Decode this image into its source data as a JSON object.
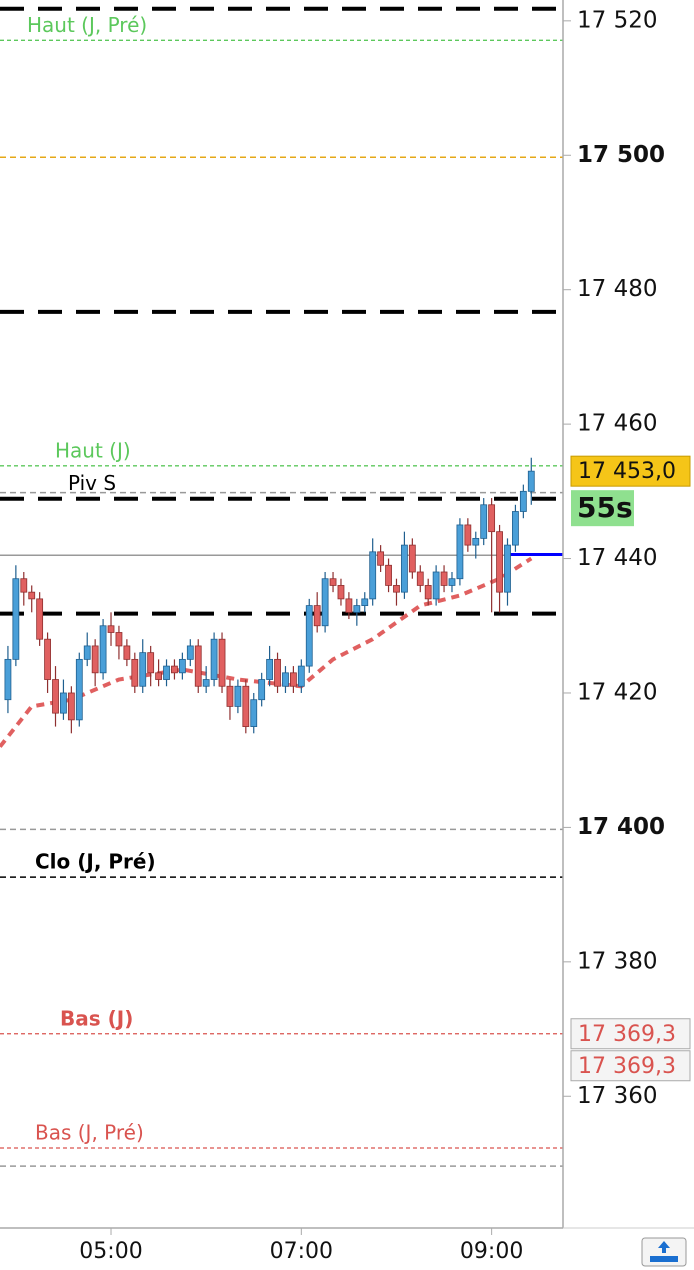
{
  "chart_data": {
    "type": "candlestick",
    "x": [
      "03:55",
      "04:00",
      "04:05",
      "04:10",
      "04:15",
      "04:20",
      "04:25",
      "04:30",
      "04:35",
      "04:40",
      "04:45",
      "04:50",
      "04:55",
      "05:00",
      "05:05",
      "05:10",
      "05:15",
      "05:20",
      "05:25",
      "05:30",
      "05:35",
      "05:40",
      "05:45",
      "05:50",
      "05:55",
      "06:00",
      "06:05",
      "06:10",
      "06:15",
      "06:20",
      "06:25",
      "06:30",
      "06:35",
      "06:40",
      "06:45",
      "06:50",
      "06:55",
      "07:00",
      "07:05",
      "07:10",
      "07:15",
      "07:20",
      "07:25",
      "07:30",
      "07:35",
      "07:40",
      "07:45",
      "07:50",
      "07:55",
      "08:00",
      "08:05",
      "08:10",
      "08:15",
      "08:20",
      "08:25",
      "08:30",
      "08:35",
      "08:40",
      "08:45",
      "08:50",
      "08:55",
      "09:00",
      "09:05",
      "09:10",
      "09:15",
      "09:20",
      "09:25"
    ],
    "open": [
      17419,
      17425,
      17437,
      17435,
      17434,
      17428,
      17422,
      17417,
      17420,
      17416,
      17425,
      17427,
      17423,
      17430,
      17429,
      17427,
      17425,
      17421,
      17426,
      17423,
      17422,
      17424,
      17423,
      17425,
      17427,
      17421,
      17422,
      17428,
      17421,
      17418,
      17421,
      17415,
      17419,
      17422,
      17425,
      17421,
      17423,
      17421,
      17424,
      17433,
      17430,
      17437,
      17436,
      17434,
      17432,
      17433,
      17434,
      17441,
      17439,
      17436,
      17435,
      17442,
      17438,
      17436,
      17434,
      17438,
      17436,
      17437,
      17445,
      17442,
      17443,
      17448,
      17444,
      17435,
      17442,
      17447,
      17450
    ],
    "high": [
      17427,
      17439,
      17438,
      17436,
      17435,
      17429,
      17424,
      17422,
      17421,
      17426,
      17429,
      17428,
      17431,
      17432,
      17430,
      17428,
      17426,
      17428,
      17427,
      17425,
      17425,
      17425,
      17426,
      17428,
      17428,
      17424,
      17429,
      17429,
      17422,
      17422,
      17422,
      17420,
      17423,
      17427,
      17426,
      17424,
      17424,
      17425,
      17434,
      17435,
      17438,
      17438,
      17437,
      17435,
      17434,
      17435,
      17443,
      17442,
      17440,
      17437,
      17444,
      17443,
      17439,
      17437,
      17439,
      17439,
      17438,
      17446,
      17446,
      17444,
      17449,
      17449,
      17445,
      17443,
      17448,
      17451,
      17455
    ],
    "low": [
      17417,
      17424,
      17433,
      17432,
      17427,
      17420,
      17415,
      17416,
      17414,
      17415,
      17424,
      17421,
      17422,
      17427,
      17425,
      17424,
      17420,
      17420,
      17421,
      17421,
      17421,
      17422,
      17422,
      17424,
      17420,
      17420,
      17421,
      17420,
      17416,
      17417,
      17414,
      17414,
      17418,
      17421,
      17420,
      17420,
      17420,
      17420,
      17423,
      17429,
      17429,
      17435,
      17433,
      17431,
      17430,
      17432,
      17433,
      17438,
      17435,
      17433,
      17434,
      17437,
      17435,
      17433,
      17433,
      17435,
      17435,
      17436,
      17441,
      17440,
      17442,
      17432,
      17432,
      17433,
      17441,
      17446,
      17448
    ],
    "close": [
      17425,
      17437,
      17435,
      17434,
      17428,
      17422,
      17417,
      17420,
      17416,
      17425,
      17427,
      17423,
      17430,
      17429,
      17427,
      17425,
      17421,
      17426,
      17423,
      17422,
      17424,
      17423,
      17425,
      17427,
      17421,
      17422,
      17428,
      17421,
      17418,
      17421,
      17415,
      17419,
      17422,
      17425,
      17421,
      17423,
      17421,
      17424,
      17433,
      17430,
      17437,
      17436,
      17434,
      17432,
      17433,
      17434,
      17441,
      17439,
      17436,
      17435,
      17442,
      17438,
      17436,
      17434,
      17438,
      17436,
      17437,
      17445,
      17442,
      17443,
      17448,
      17444,
      17435,
      17442,
      17447,
      17450,
      17453
    ],
    "up_color": "#4a9fd8",
    "down_color": "#e06060",
    "ma": {
      "x": [
        "03:50",
        "04:10",
        "04:35",
        "05:05",
        "05:45",
        "06:20",
        "07:00",
        "07:20",
        "07:45",
        "08:15",
        "08:40",
        "09:05",
        "09:25"
      ],
      "values": [
        17412,
        17418,
        17419,
        17422,
        17423.5,
        17422,
        17421,
        17425,
        17428,
        17433,
        17434.5,
        17437,
        17440
      ],
      "color": "#e06060"
    },
    "levels": [
      {
        "value": 17521.8,
        "color": "#000000",
        "style": "thick"
      },
      {
        "name": "Haut (J, Pré)",
        "value": 17517.1,
        "color": "#5cc85c",
        "style": "dotted"
      },
      {
        "value": 17499.7,
        "color": "#e6a817",
        "style": "dashed"
      },
      {
        "value": 17476.7,
        "color": "#000000",
        "style": "thick"
      },
      {
        "name": "Haut (J)",
        "value": 17453.8,
        "color": "#5cc85c",
        "style": "dotted"
      },
      {
        "value": 17449.8,
        "color": "#999999",
        "style": "dashed"
      },
      {
        "name": "Piv S",
        "value": 17448.9,
        "color": "#000000",
        "style": "thick"
      },
      {
        "value": 17440.5,
        "color": "#999999",
        "style": "solid"
      },
      {
        "value": 17431.8,
        "color": "#000000",
        "style": "thick"
      },
      {
        "value": 17399.7,
        "color": "#999999",
        "style": "dashed"
      },
      {
        "name": "Clo (J, Pré)",
        "value": 17392.6,
        "color": "#000000",
        "style": "dashed"
      },
      {
        "name": "Bas (J)",
        "value": 17369.3,
        "color": "#d9534f",
        "style": "dotted"
      },
      {
        "name": "Bas (J, Pré)",
        "value": 17352.3,
        "color": "#d9534f",
        "style": "dotted"
      },
      {
        "value": 17349.6,
        "color": "#999999",
        "style": "dashed"
      },
      {
        "value": 17440.6,
        "color": "#0000ff",
        "style": "bold",
        "x_start": "09:10"
      }
    ],
    "price_labels": [
      {
        "value": 17453,
        "label": "17 453,0",
        "color": "#f5c518"
      },
      {
        "value": 17369.3,
        "label": "17 369,3",
        "color": "#d9534f"
      },
      {
        "value": 17369.3,
        "label": "17 369,3",
        "color": "#d9534f"
      }
    ],
    "countdown": "55s",
    "xlim": [
      "03:50",
      "09:45"
    ],
    "xticks": [
      "05:00",
      "07:00",
      "09:00"
    ],
    "ylim": [
      17340.4,
      17523.1
    ],
    "yticks": [
      {
        "value": 17360,
        "label": "17 360"
      },
      {
        "value": 17380,
        "label": "17 380"
      },
      {
        "value": 17400,
        "label": "17 400"
      },
      {
        "value": 17420,
        "label": "17 420"
      },
      {
        "value": 17440,
        "label": "17 440"
      },
      {
        "value": 17460,
        "label": "17 460"
      },
      {
        "value": 17480,
        "label": "17 480"
      },
      {
        "value": 17500,
        "label": "17 500"
      },
      {
        "value": 17520,
        "label": "17 520"
      }
    ]
  }
}
